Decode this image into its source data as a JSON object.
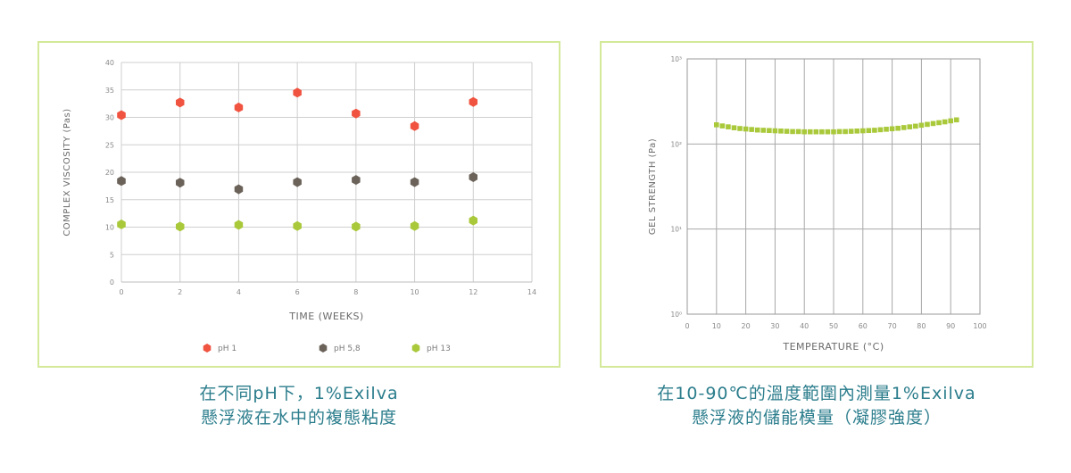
{
  "captions": {
    "left": {
      "line1": "在不同pH下，1%Exilva",
      "line2": "懸浮液在水中的複態粘度"
    },
    "right": {
      "line1": "在10-90℃的溫度範圍內測量1%Exilva",
      "line2": "懸浮液的儲能模量（凝膠強度）"
    }
  },
  "chart_data": [
    {
      "type": "scatter",
      "xlabel": "TIME (WEEKS)",
      "ylabel": "COMPLEX VISCOSITY (Pas)",
      "xlim": [
        0,
        14
      ],
      "ylim": [
        0,
        40
      ],
      "x_ticks": [
        0,
        2,
        4,
        6,
        8,
        10,
        12,
        14
      ],
      "y_ticks": [
        0,
        5,
        10,
        15,
        20,
        25,
        30,
        35,
        40
      ],
      "grid": true,
      "legend": "bottom",
      "series": [
        {
          "name": "pH 1",
          "color": "#f0533f",
          "marker": "hexagon",
          "x": [
            0,
            2,
            4,
            6,
            8,
            10,
            12
          ],
          "y": [
            30.4,
            32.7,
            31.8,
            34.5,
            30.7,
            28.4,
            32.8
          ]
        },
        {
          "name": "pH 5,8",
          "color": "#6b6259",
          "marker": "hexagon",
          "x": [
            0,
            2,
            4,
            6,
            8,
            10,
            12
          ],
          "y": [
            18.4,
            18.1,
            16.9,
            18.2,
            18.6,
            18.2,
            19.1
          ]
        },
        {
          "name": "pH 13",
          "color": "#a9c93a",
          "marker": "hexagon",
          "x": [
            0,
            2,
            4,
            6,
            8,
            10,
            12
          ],
          "y": [
            10.5,
            10.1,
            10.4,
            10.2,
            10.1,
            10.2,
            11.2
          ]
        }
      ]
    },
    {
      "type": "scatter",
      "xlabel": "TEMPERATURE (°C)",
      "ylabel": "GEL STRENGTH (Pa)",
      "xlim": [
        0,
        100
      ],
      "ylim": [
        1,
        1000
      ],
      "yscale": "log",
      "x_ticks": [
        0,
        10,
        20,
        30,
        40,
        50,
        60,
        70,
        80,
        90,
        100
      ],
      "y_ticks": [
        {
          "value": 1,
          "label": "10⁰"
        },
        {
          "value": 10,
          "label": "10¹"
        },
        {
          "value": 100,
          "label": "10²"
        },
        {
          "value": 1000,
          "label": "10³"
        }
      ],
      "grid": true,
      "series": [
        {
          "color": "#a9c93a",
          "marker": "square",
          "x": [
            10,
            12,
            14,
            16,
            18,
            20,
            22,
            24,
            26,
            28,
            30,
            32,
            34,
            36,
            38,
            40,
            42,
            44,
            46,
            48,
            50,
            52,
            54,
            56,
            58,
            60,
            62,
            64,
            66,
            68,
            70,
            72,
            74,
            76,
            78,
            80,
            82,
            84,
            86,
            88,
            90,
            92
          ],
          "y": [
            168,
            163,
            159,
            155,
            152,
            150,
            148,
            146,
            145,
            144,
            143,
            142,
            141,
            140,
            140,
            139,
            139,
            139,
            139,
            139,
            139,
            140,
            140,
            141,
            142,
            143,
            144,
            145,
            147,
            149,
            151,
            153,
            156,
            159,
            162,
            166,
            170,
            174,
            178,
            182,
            187,
            192
          ]
        }
      ]
    }
  ]
}
